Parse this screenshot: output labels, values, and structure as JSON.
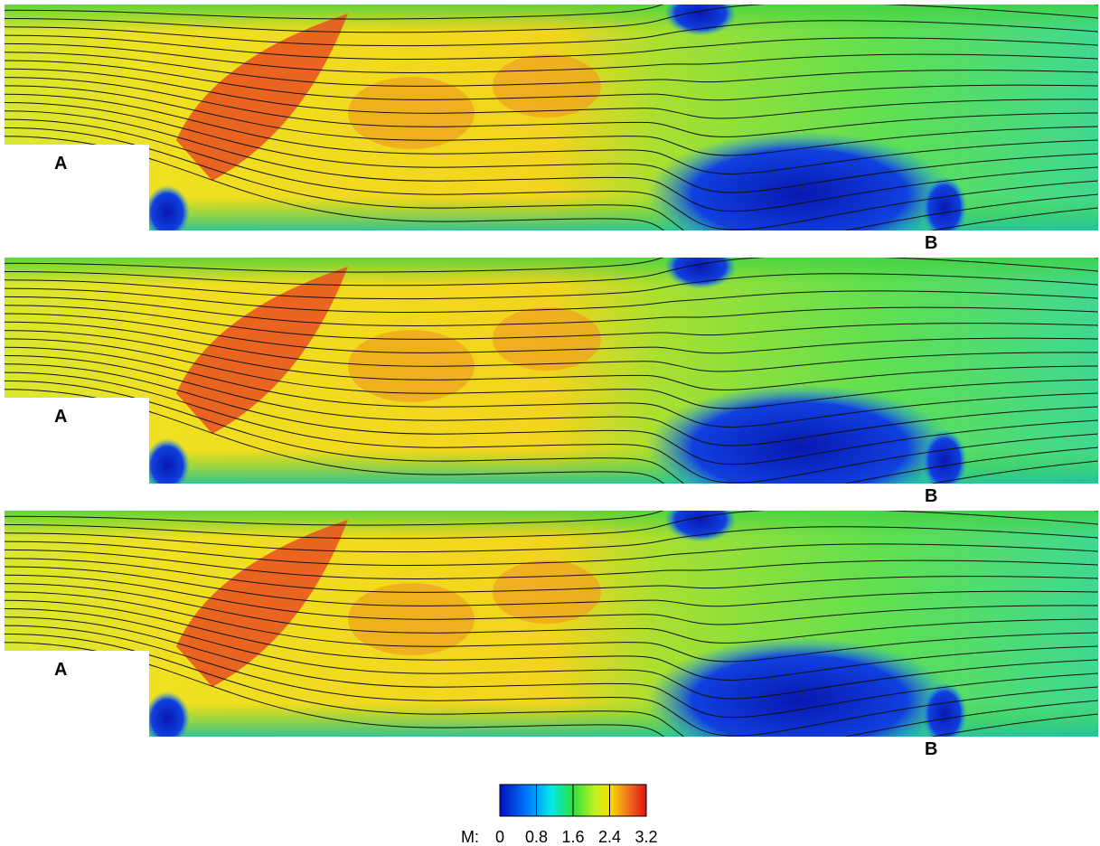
{
  "panels": [
    {
      "labels": [
        "A",
        "B"
      ]
    },
    {
      "labels": [
        "A",
        "B"
      ]
    },
    {
      "labels": [
        "A",
        "B"
      ]
    }
  ],
  "colorbar": {
    "label": "M:",
    "range": [
      0,
      3.2
    ],
    "ticks": [
      0,
      0.8,
      1.6,
      2.4,
      3.2
    ]
  }
}
